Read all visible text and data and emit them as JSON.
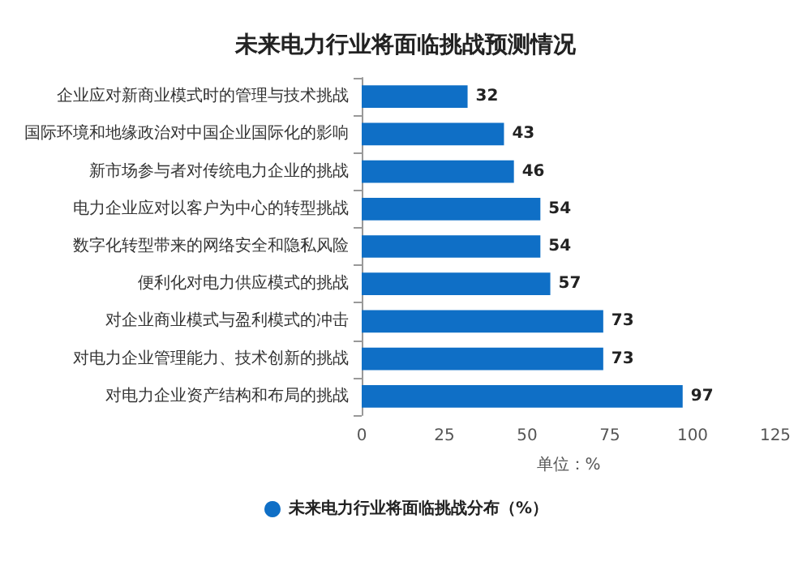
{
  "chart_data": {
    "type": "bar",
    "orientation": "horizontal",
    "title": "未来电力行业将面临挑战预测情况",
    "xlabel": "单位：%",
    "categories": [
      "企业应对新商业模式时的管理与技术挑战",
      "国际环境和地缘政治对中国企业国际化的影响",
      "新市场参与者对传统电力企业的挑战",
      "电力企业应对以客户为中心的转型挑战",
      "数字化转型带来的网络安全和隐私风险",
      "便利化对电力供应模式的挑战",
      "对企业商业模式与盈利模式的冲击",
      "对电力企业管理能力、技术创新的挑战",
      "对电力企业资产结构和布局的挑战"
    ],
    "series": [
      {
        "name": "未来电力行业将面临挑战分布（%）",
        "color": "#0f6fc6",
        "values": [
          32,
          43,
          46,
          54,
          54,
          57,
          73,
          73,
          97
        ]
      }
    ],
    "xlim": [
      0,
      125
    ],
    "xticks": [
      0,
      25,
      50,
      75,
      100,
      125
    ],
    "data_labels": true,
    "grid": false,
    "legend": "bottom left"
  }
}
